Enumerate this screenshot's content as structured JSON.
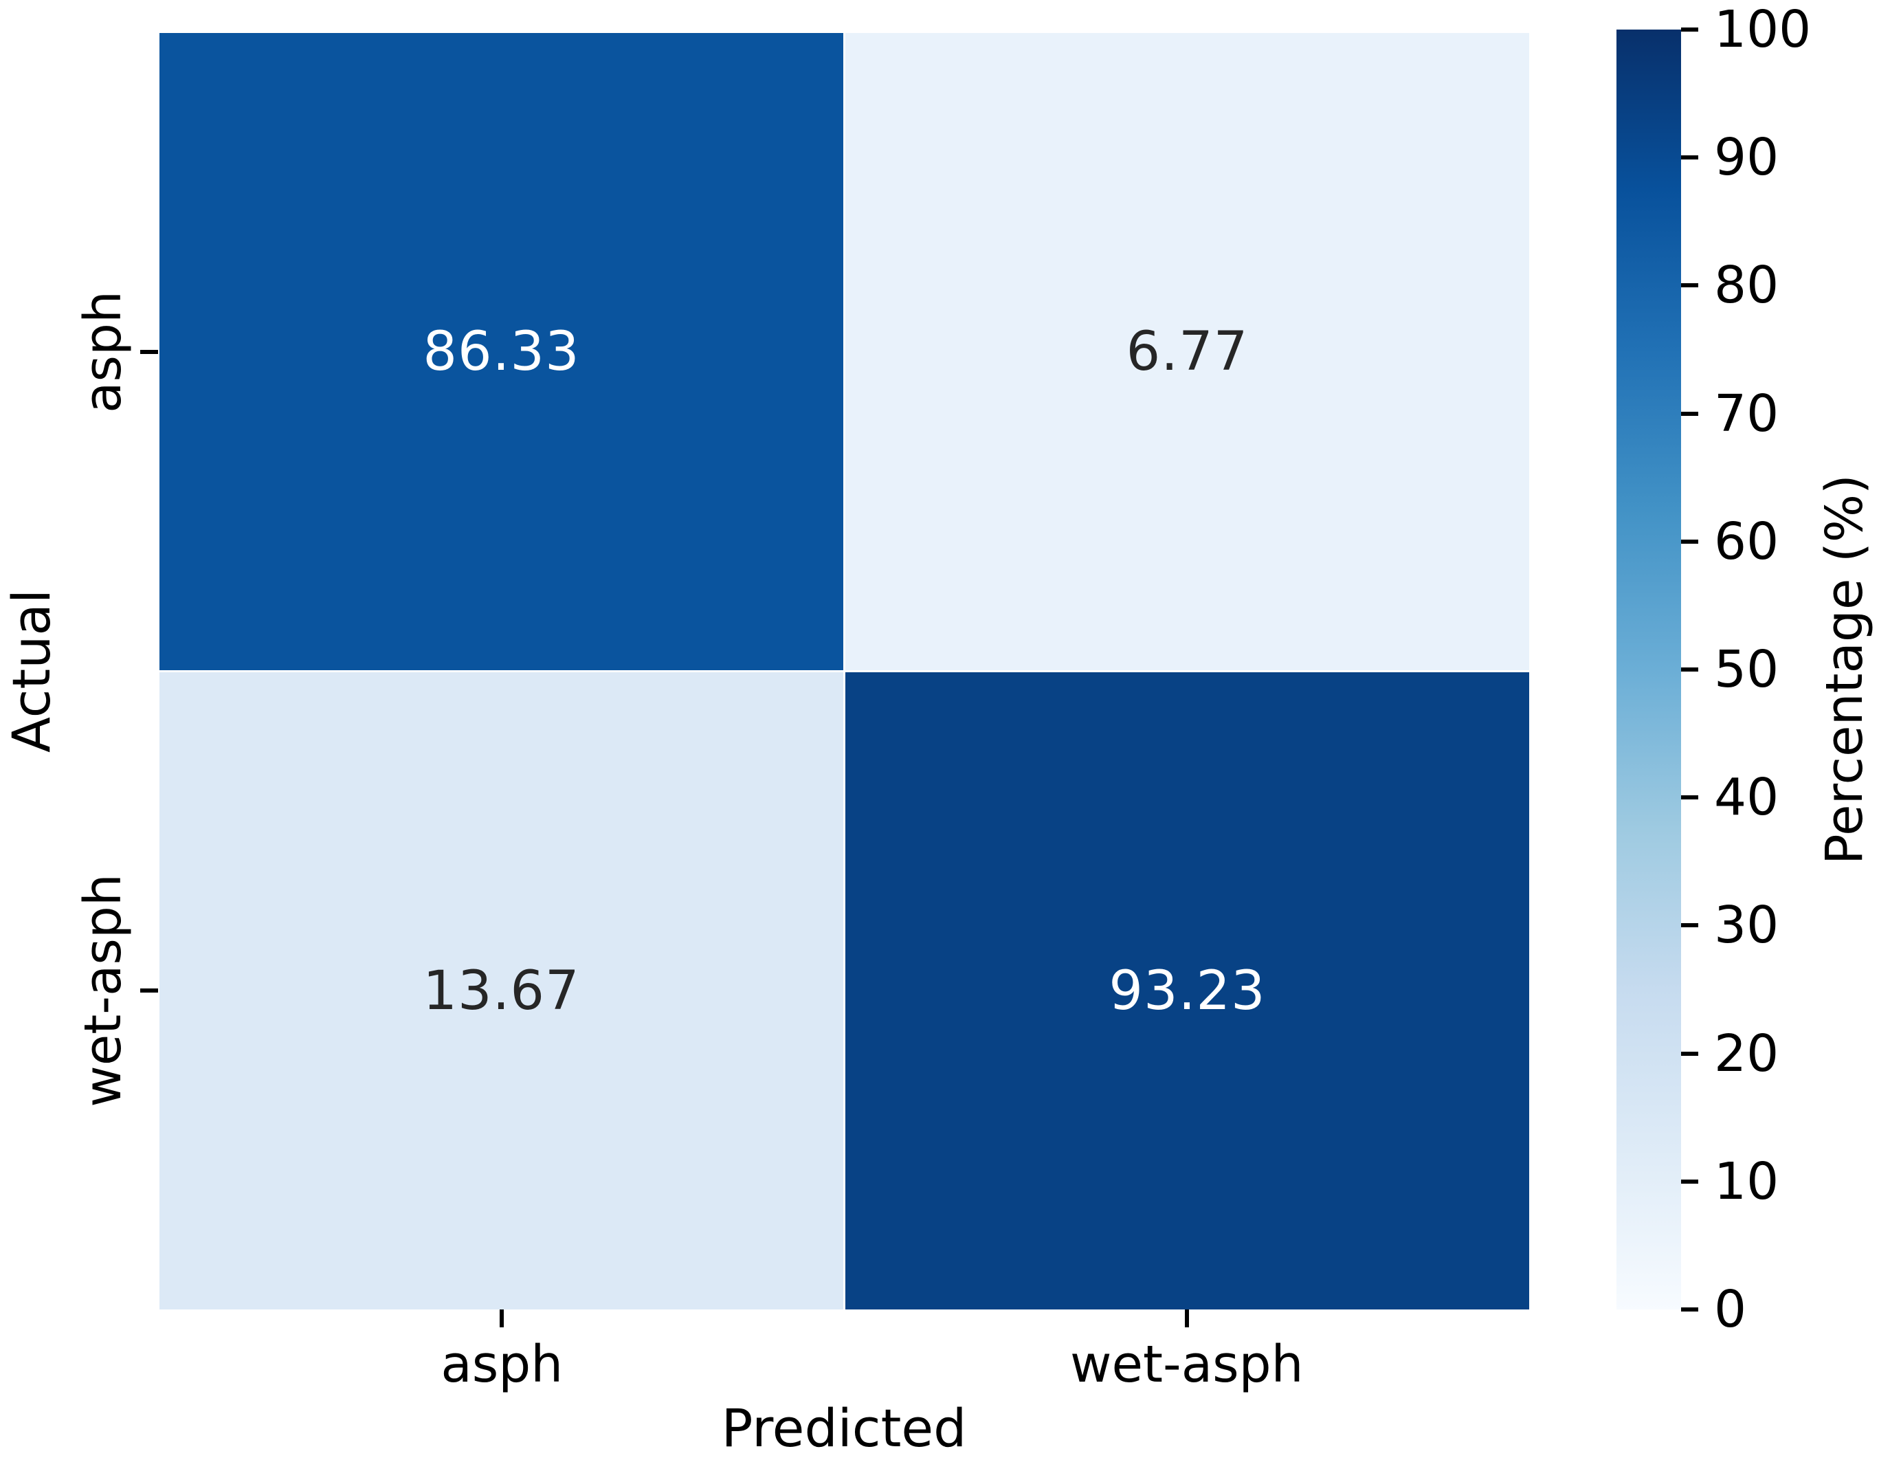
{
  "figure": {
    "background": "#ffffff"
  },
  "chart_data": {
    "type": "heatmap",
    "title": "",
    "xlabel": "Predicted",
    "ylabel": "Actual",
    "x_categories": [
      "asph",
      "wet-asph"
    ],
    "y_categories": [
      "asph",
      "wet-asph"
    ],
    "values": [
      [
        86.33,
        6.77
      ],
      [
        13.67,
        93.23
      ]
    ],
    "value_unit": "percent",
    "cells": [
      {
        "actual": "asph",
        "predicted": "asph",
        "label": "86.33",
        "bg": "#0a549e",
        "fg": "#ffffff"
      },
      {
        "actual": "asph",
        "predicted": "wet-asph",
        "label": "6.77",
        "bg": "#e9f2fb",
        "fg": "#262626"
      },
      {
        "actual": "wet-asph",
        "predicted": "asph",
        "label": "13.67",
        "bg": "#dce9f6",
        "fg": "#262626"
      },
      {
        "actual": "wet-asph",
        "predicted": "wet-asph",
        "label": "93.23",
        "bg": "#084285",
        "fg": "#ffffff"
      }
    ],
    "colorbar": {
      "label": "Percentage (%)",
      "min": 0,
      "max": 100,
      "ticks": [
        "0",
        "10",
        "20",
        "30",
        "40",
        "50",
        "60",
        "70",
        "80",
        "90",
        "100"
      ],
      "colormap": "Blues",
      "gradient_stops_bottom_to_top": [
        "#f7fbff",
        "#deebf7",
        "#c6dbef",
        "#9ecae1",
        "#6baed6",
        "#4292c6",
        "#2171b5",
        "#08519c",
        "#08306b"
      ]
    },
    "layout": {
      "grid": "off",
      "legend": "none",
      "colorbar_position": "right"
    }
  }
}
